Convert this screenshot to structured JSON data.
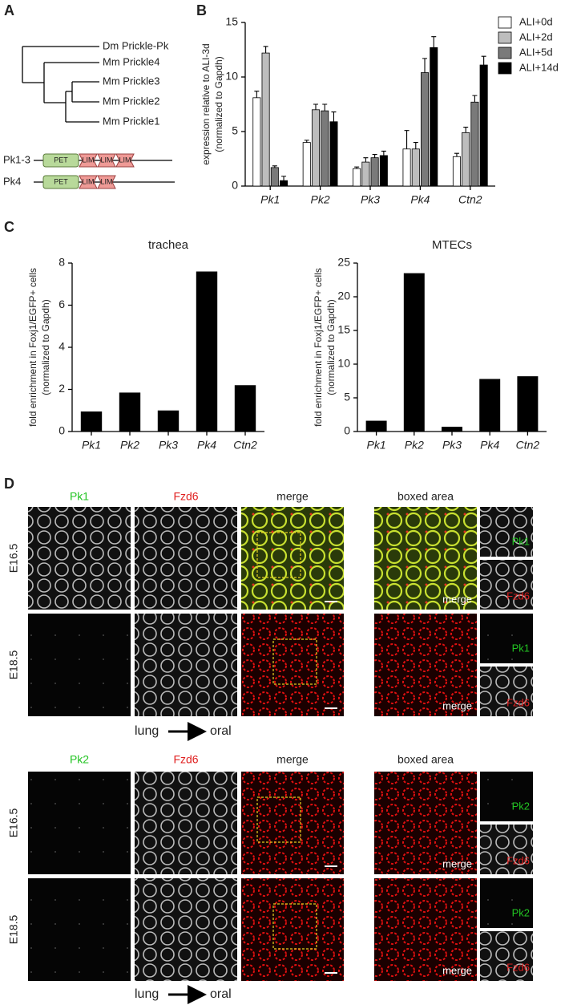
{
  "panel_labels": [
    "A",
    "B",
    "C",
    "D"
  ],
  "panel_a": {
    "tree_labels": [
      "Dm Prickle-Pk",
      "Mm Prickle4",
      "Mm Prickle3",
      "Mm Prickle2",
      "Mm Prickle1"
    ],
    "proteins": [
      {
        "name": "Pk1-3",
        "domains": [
          "PET",
          "LIM",
          "LIM",
          "LIM"
        ]
      },
      {
        "name": "Pk4",
        "domains": [
          "PET",
          "LIM",
          "LIM"
        ]
      }
    ]
  },
  "chart_data": [
    {
      "type": "bar",
      "ylabel": [
        "expression relative to ALI-3d",
        "(normalized to Gapdh)"
      ],
      "categories": [
        "Pk1",
        "Pk2",
        "Pk3",
        "Pk4",
        "Ctn2"
      ],
      "series": [
        {
          "name": "ALI+0d",
          "color": "#ffffff",
          "values": [
            8.1,
            4.0,
            1.6,
            3.4,
            2.7
          ],
          "errors": [
            0.6,
            0.2,
            0.15,
            1.7,
            0.3
          ]
        },
        {
          "name": "ALI+2d",
          "color": "#bdbdbd",
          "values": [
            12.2,
            7.0,
            2.2,
            3.4,
            4.9
          ],
          "errors": [
            0.6,
            0.5,
            0.4,
            0.6,
            0.5
          ]
        },
        {
          "name": "ALI+5d",
          "color": "#7a7a7a",
          "values": [
            1.7,
            6.9,
            2.6,
            10.4,
            7.7
          ],
          "errors": [
            0.15,
            0.6,
            0.3,
            1.3,
            0.6
          ]
        },
        {
          "name": "ALI+14d",
          "color": "#000000",
          "values": [
            0.5,
            5.9,
            2.8,
            12.7,
            11.1
          ],
          "errors": [
            0.4,
            0.9,
            0.4,
            1.0,
            0.8
          ]
        }
      ],
      "ylim": [
        0,
        15
      ],
      "yticks": [
        0,
        5,
        10,
        15
      ],
      "legend": "right"
    },
    {
      "type": "bar",
      "title": "trachea",
      "ylabel": [
        "fold enrichment in Foxj1/EGFP+ cells",
        "(normalized to Gapdh)"
      ],
      "categories": [
        "Pk1",
        "Pk2",
        "Pk3",
        "Pk4",
        "Ctn2"
      ],
      "values": [
        0.95,
        1.85,
        1.0,
        7.6,
        2.2
      ],
      "color": "#000000",
      "ylim": [
        0,
        8
      ],
      "yticks": [
        0,
        2,
        4,
        6,
        8
      ]
    },
    {
      "type": "bar",
      "title": "MTECs",
      "ylabel": [
        "fold enrichment in Foxj1/EGFP+ cells",
        "(normalized to Gapdh)"
      ],
      "categories": [
        "Pk1",
        "Pk2",
        "Pk3",
        "Pk4",
        "Ctn2"
      ],
      "values": [
        1.6,
        23.5,
        0.7,
        7.8,
        8.2
      ],
      "color": "#000000",
      "ylim": [
        0,
        25
      ],
      "yticks": [
        0,
        5,
        10,
        15,
        20,
        25
      ]
    }
  ],
  "panel_d": {
    "blocks": [
      {
        "headers": [
          "Pk1",
          "Fzd6",
          "merge",
          "boxed area"
        ],
        "rows": [
          {
            "label": "E16.5",
            "merge_label": "merge",
            "side_labels": [
              "Pk1",
              "Fzd6"
            ]
          },
          {
            "label": "E18.5",
            "merge_label": "merge",
            "side_labels": [
              "Pk1",
              "Fzd6"
            ]
          }
        ],
        "axis": [
          "lung",
          "oral"
        ]
      },
      {
        "headers": [
          "Pk2",
          "Fzd6",
          "merge",
          "boxed area"
        ],
        "rows": [
          {
            "label": "E16.5",
            "merge_label": "merge",
            "side_labels": [
              "Pk2",
              "Fzd6"
            ]
          },
          {
            "label": "E18.5",
            "merge_label": "merge",
            "side_labels": [
              "Pk2",
              "Fzd6"
            ]
          }
        ],
        "axis": [
          "lung",
          "oral"
        ]
      }
    ]
  }
}
